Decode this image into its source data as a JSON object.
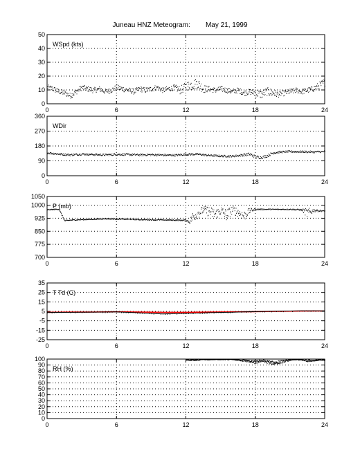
{
  "figure": {
    "title": "Juneau HNZ Meteogram:        May 21, 1999"
  },
  "chart_data": [
    {
      "type": "scatter",
      "label": "WSpd (kts)",
      "xlim": [
        0,
        24
      ],
      "ylim": [
        0,
        50
      ],
      "xticks": [
        0,
        6,
        12,
        18,
        24
      ],
      "yticks": [
        0,
        10,
        20,
        30,
        40,
        50
      ],
      "grid": true,
      "series": [
        {
          "color": "#000000",
          "x": [
            0,
            0.5,
            1,
            1.5,
            2,
            2.5,
            3,
            3.5,
            4,
            4.5,
            5,
            5.5,
            6,
            6.5,
            7,
            7.5,
            8,
            8.5,
            9,
            9.5,
            10,
            10.5,
            11,
            11.5,
            12,
            12.5,
            13,
            13.5,
            14,
            14.5,
            15,
            15.5,
            16,
            16.5,
            17,
            17.5,
            18,
            18.5,
            19,
            19.5,
            20,
            20.5,
            21,
            21.5,
            22,
            22.5,
            23,
            23.5,
            24
          ],
          "values": [
            12,
            11,
            9,
            8,
            6,
            9,
            12,
            11,
            10,
            11,
            9,
            10,
            12,
            11,
            10,
            9,
            11,
            10,
            11,
            12,
            10,
            11,
            12,
            10,
            13,
            14,
            15,
            11,
            11,
            10,
            11,
            10,
            9,
            10,
            8,
            9,
            8,
            7,
            9,
            8,
            7,
            8,
            9,
            10,
            9,
            10,
            11,
            13,
            16
          ],
          "spread": [
            2,
            2,
            2,
            2,
            2,
            2,
            2,
            2,
            2,
            2,
            2,
            2,
            2,
            2,
            2,
            2,
            2,
            2,
            2,
            2,
            2,
            2,
            2,
            3,
            3,
            4,
            4,
            3,
            2,
            2,
            2,
            2,
            2,
            2,
            2,
            2,
            3,
            3,
            3,
            3,
            2,
            2,
            2,
            2,
            2,
            2,
            2,
            3,
            3
          ]
        }
      ]
    },
    {
      "type": "scatter",
      "label": "WDir",
      "xlim": [
        0,
        24
      ],
      "ylim": [
        0,
        360
      ],
      "xticks": [
        0,
        6,
        12,
        18,
        24
      ],
      "yticks": [
        0,
        90,
        180,
        270,
        360
      ],
      "grid": true,
      "series": [
        {
          "color": "#000000",
          "x": [
            0,
            1,
            2,
            3,
            4,
            5,
            6,
            7,
            8,
            9,
            10,
            11,
            12,
            13,
            14,
            15,
            16,
            16.5,
            17,
            17.5,
            18,
            18.5,
            19,
            19.5,
            20,
            21,
            22,
            23,
            24
          ],
          "values": [
            140,
            133,
            128,
            133,
            130,
            128,
            131,
            130,
            128,
            129,
            127,
            126,
            131,
            132,
            125,
            121,
            120,
            124,
            128,
            132,
            115,
            112,
            122,
            140,
            145,
            148,
            147,
            146,
            148
          ],
          "spread": [
            6,
            6,
            6,
            6,
            6,
            6,
            6,
            6,
            6,
            6,
            6,
            6,
            6,
            6,
            6,
            6,
            6,
            6,
            8,
            10,
            10,
            8,
            8,
            8,
            6,
            6,
            6,
            6,
            6
          ]
        }
      ]
    },
    {
      "type": "scatter",
      "label": "P (mb)",
      "xlim": [
        0,
        24
      ],
      "ylim": [
        700,
        1050
      ],
      "xticks": [
        0,
        6,
        12,
        18,
        24
      ],
      "yticks": [
        700,
        775,
        850,
        925,
        1000,
        1050
      ],
      "grid": true,
      "series": [
        {
          "color": "#000000",
          "x": [
            0,
            0.5,
            1,
            1.5,
            2,
            3,
            4,
            5,
            6,
            7,
            8,
            9,
            10,
            11,
            12,
            12.3,
            12.5,
            13,
            13.5,
            14,
            14.5,
            15,
            15.5,
            16,
            16.5,
            17,
            17.5,
            18,
            19,
            20,
            21,
            22,
            22.5,
            23,
            23.5,
            24
          ],
          "values": [
            975,
            977,
            979,
            912,
            916,
            919,
            921,
            924,
            922,
            921,
            919,
            918,
            917,
            916,
            915,
            905,
            930,
            955,
            975,
            965,
            950,
            970,
            945,
            975,
            960,
            940,
            970,
            978,
            978,
            978,
            978,
            975,
            955,
            972,
            970,
            968
          ],
          "spread": [
            3,
            3,
            3,
            4,
            3,
            3,
            3,
            3,
            3,
            3,
            3,
            3,
            3,
            3,
            4,
            10,
            30,
            30,
            20,
            30,
            30,
            25,
            35,
            25,
            25,
            30,
            15,
            4,
            3,
            3,
            3,
            5,
            30,
            10,
            5,
            3
          ]
        }
      ]
    },
    {
      "type": "line",
      "label": "T Td (C)",
      "xlim": [
        0,
        24
      ],
      "ylim": [
        -25,
        35
      ],
      "xticks": [
        0,
        6,
        12,
        18,
        24
      ],
      "yticks": [
        -25,
        -15,
        -5,
        5,
        15,
        25,
        35
      ],
      "grid": true,
      "series": [
        {
          "color": "#ff0000",
          "x": [
            0,
            2,
            4,
            6,
            8,
            10,
            12,
            14,
            16,
            18,
            20,
            22,
            24
          ],
          "values": [
            4.0,
            4.2,
            4.3,
            4.5,
            4.3,
            4.0,
            4.0,
            4.2,
            4.4,
            4.7,
            5.0,
            5.3,
            5.4
          ]
        },
        {
          "color": "#000000",
          "x": [
            0,
            2,
            4,
            6,
            8,
            9,
            10,
            11,
            12,
            13,
            14,
            16,
            17,
            18,
            19,
            20,
            22,
            23,
            24
          ],
          "values": [
            3.8,
            4.0,
            4.2,
            4.4,
            3.5,
            2.8,
            2.3,
            2.6,
            3.0,
            3.2,
            3.6,
            4.1,
            4.4,
            4.7,
            5.0,
            5.2,
            5.5,
            5.6,
            5.6
          ]
        }
      ]
    },
    {
      "type": "scatter",
      "label": "RH (%)",
      "xlim": [
        0,
        24
      ],
      "ylim": [
        0,
        100
      ],
      "xticks": [
        0,
        6,
        12,
        18,
        24
      ],
      "yticks": [
        0,
        10,
        20,
        30,
        40,
        50,
        60,
        70,
        80,
        90,
        100
      ],
      "grid": true,
      "series": [
        {
          "color": "#000000",
          "x": [
            12,
            12.5,
            13,
            13.5,
            16,
            16.5,
            17,
            17.5,
            18,
            18.5,
            19,
            19.5,
            20,
            20.5,
            21,
            21.5,
            22,
            22.5,
            23,
            23.5,
            24
          ],
          "values": [
            99,
            99,
            99,
            100,
            100,
            99,
            98,
            97,
            95,
            98,
            96,
            94,
            95,
            97,
            99,
            100,
            99,
            98,
            98,
            99,
            99
          ],
          "spread": [
            1,
            1,
            1,
            1,
            1,
            1,
            2,
            2,
            3,
            2,
            3,
            3,
            3,
            2,
            1,
            1,
            1,
            2,
            1,
            1,
            1
          ]
        }
      ]
    }
  ]
}
